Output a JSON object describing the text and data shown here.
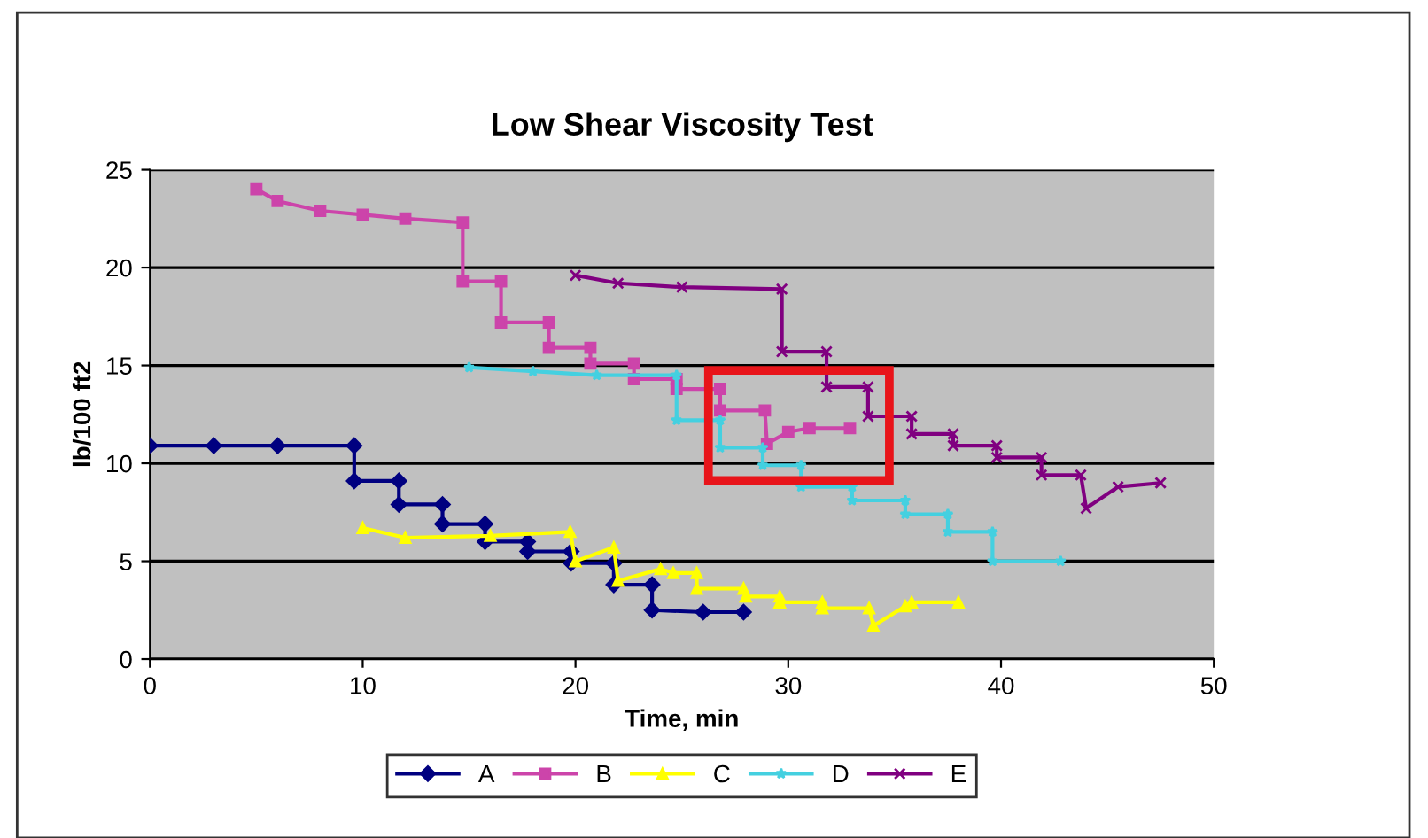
{
  "chart_data": {
    "type": "line",
    "title": "Low Shear Viscosity Test",
    "xlabel": "Time, min",
    "ylabel": "lb/100 ft2",
    "xlim": [
      0,
      50
    ],
    "xticks": [
      0,
      10,
      20,
      30,
      40,
      50
    ],
    "ylim": [
      0,
      25
    ],
    "yticks": [
      0,
      5,
      10,
      15,
      20,
      25
    ],
    "grid": "y",
    "legend": "bottom",
    "series": [
      {
        "name": "A",
        "color": "#000080",
        "marker": "diamond",
        "x": [
          0,
          3,
          6,
          9.6,
          9.6,
          11.7,
          11.7,
          13.75,
          13.75,
          15.75,
          15.75,
          17.75,
          17.75,
          19.8,
          19.8,
          21.8,
          21.8,
          23.6,
          23.6,
          26,
          27.9
        ],
        "values": [
          10.9,
          10.9,
          10.9,
          10.9,
          9.1,
          9.1,
          7.9,
          7.9,
          6.9,
          6.9,
          6.0,
          6.0,
          5.5,
          5.5,
          4.9,
          4.9,
          3.8,
          3.8,
          2.5,
          2.4,
          2.4
        ]
      },
      {
        "name": "B",
        "color": "#cc44aa",
        "marker": "square",
        "x": [
          5,
          6,
          8,
          10,
          12,
          14.7,
          14.7,
          16.5,
          16.5,
          18.75,
          18.75,
          20.7,
          20.7,
          22.75,
          22.75,
          24.75,
          24.75,
          26.8,
          26.8,
          28.9,
          29,
          30,
          31,
          32.9
        ],
        "values": [
          24,
          23.4,
          22.9,
          22.7,
          22.5,
          22.3,
          19.3,
          19.3,
          17.2,
          17.2,
          15.9,
          15.9,
          15.1,
          15.1,
          14.3,
          14.3,
          13.8,
          13.8,
          12.7,
          12.7,
          11.0,
          11.6,
          11.8,
          11.8
        ]
      },
      {
        "name": "C",
        "color": "#ffff00",
        "marker": "triangle",
        "x": [
          10,
          12,
          16,
          19.75,
          20,
          21.8,
          22,
          24,
          24.6,
          25.7,
          25.7,
          27.9,
          28,
          29.6,
          29.6,
          31.6,
          31.6,
          33.8,
          34,
          35.5,
          35.8,
          38
        ],
        "values": [
          6.7,
          6.2,
          6.3,
          6.5,
          5.0,
          5.7,
          4.0,
          4.6,
          4.4,
          4.4,
          3.6,
          3.6,
          3.2,
          3.2,
          2.9,
          2.9,
          2.6,
          2.6,
          1.7,
          2.7,
          2.9,
          2.9
        ]
      },
      {
        "name": "D",
        "color": "#44d0e0",
        "marker": "star",
        "x": [
          15,
          18,
          21,
          24.75,
          24.75,
          26.8,
          26.8,
          28.8,
          28.8,
          30.6,
          30.6,
          33,
          33,
          35.5,
          35.5,
          37.5,
          37.5,
          39.6,
          39.6,
          42.8
        ],
        "values": [
          14.9,
          14.7,
          14.5,
          14.5,
          12.2,
          12.2,
          10.8,
          10.8,
          9.9,
          9.9,
          8.8,
          8.8,
          8.1,
          8.1,
          7.4,
          7.4,
          6.5,
          6.5,
          5.0,
          5.0
        ]
      },
      {
        "name": "E",
        "color": "#800080",
        "marker": "cross",
        "x": [
          20,
          22,
          25,
          29.7,
          29.7,
          31.8,
          31.8,
          33.75,
          33.75,
          35.8,
          35.8,
          37.75,
          37.75,
          39.8,
          39.8,
          41.9,
          41.9,
          43.75,
          44,
          45.5,
          47.5
        ],
        "values": [
          19.6,
          19.2,
          19.0,
          18.9,
          15.7,
          15.7,
          13.9,
          13.9,
          12.4,
          12.4,
          11.5,
          11.5,
          10.9,
          10.9,
          10.3,
          10.3,
          9.4,
          9.4,
          7.7,
          8.8,
          9.0
        ]
      }
    ]
  }
}
